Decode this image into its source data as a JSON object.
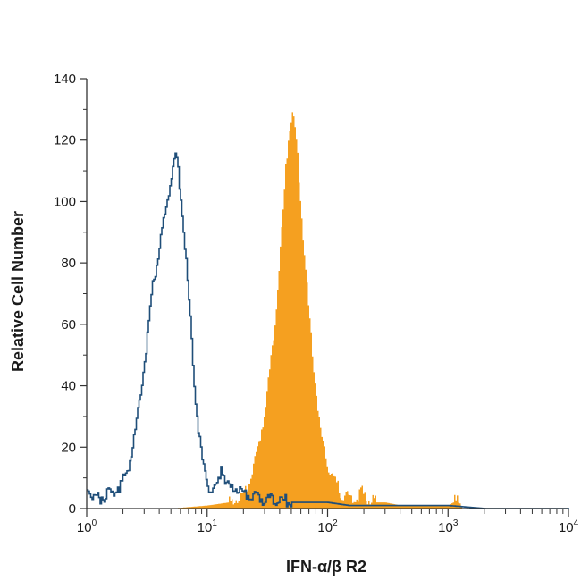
{
  "chart_data": {
    "type": "histogram",
    "title": "",
    "xlabel": "IFN-α/β R2",
    "ylabel": "Relative Cell Number",
    "xscale": "log",
    "xlim": [
      1,
      10000
    ],
    "ylim": [
      0,
      140
    ],
    "y_ticks": [
      0,
      20,
      40,
      60,
      80,
      100,
      120,
      140
    ],
    "x_ticks": [
      {
        "value": 1,
        "base": "10",
        "exp": "0"
      },
      {
        "value": 10,
        "base": "10",
        "exp": "1"
      },
      {
        "value": 100,
        "base": "10",
        "exp": "2"
      },
      {
        "value": 1000,
        "base": "10",
        "exp": "3"
      },
      {
        "value": 10000,
        "base": "10",
        "exp": "4"
      }
    ],
    "grid": false,
    "legend": "none",
    "series": [
      {
        "style": "outline",
        "color": "#1f4e79",
        "x": [
          1.0,
          1.1,
          1.2,
          1.35,
          1.5,
          1.7,
          1.9,
          2.1,
          2.3,
          2.5,
          2.7,
          2.9,
          3.1,
          3.3,
          3.5,
          3.75,
          4.0,
          4.3,
          4.6,
          4.9,
          5.2,
          5.5,
          5.8,
          6.1,
          6.5,
          7.0,
          7.5,
          8.0,
          8.6,
          9.2,
          10,
          11,
          12,
          13,
          14,
          15,
          16,
          18,
          20,
          25,
          30,
          40,
          50,
          60,
          80,
          100,
          150,
          200,
          300,
          500,
          1000,
          2000,
          5000,
          10000
        ],
        "y": [
          8,
          5,
          3,
          4,
          5,
          6,
          8,
          11,
          17,
          25,
          34,
          43,
          52,
          62,
          72,
          79,
          85,
          93,
          100,
          106,
          112,
          116,
          108,
          99,
          85,
          68,
          50,
          35,
          22,
          14,
          8,
          5,
          7,
          14,
          10,
          6,
          7,
          6,
          5,
          4,
          3,
          3,
          2,
          2,
          2,
          2,
          1,
          1,
          1,
          1,
          1,
          0,
          0,
          0
        ]
      },
      {
        "style": "filled",
        "color": "#f5a020",
        "x": [
          1,
          5,
          10,
          15,
          18,
          20,
          22,
          24,
          26,
          28,
          30,
          32,
          34,
          36,
          38,
          40,
          42,
          44,
          46,
          48,
          50,
          52,
          55,
          58,
          61,
          65,
          70,
          75,
          80,
          85,
          90,
          100,
          110,
          120,
          130,
          150,
          170,
          190,
          200,
          220,
          250,
          300,
          400,
          500,
          700,
          1000,
          1200,
          1300,
          2000,
          10000
        ],
        "y": [
          0,
          0,
          1,
          2,
          3,
          5,
          9,
          14,
          19,
          26,
          33,
          42,
          50,
          60,
          72,
          84,
          96,
          108,
          118,
          124,
          129,
          126,
          118,
          105,
          92,
          78,
          62,
          48,
          37,
          28,
          21,
          14,
          10,
          7,
          5,
          4,
          3,
          6,
          4,
          3,
          2,
          2,
          1,
          1,
          1,
          1,
          3,
          0,
          0,
          0
        ]
      }
    ]
  }
}
